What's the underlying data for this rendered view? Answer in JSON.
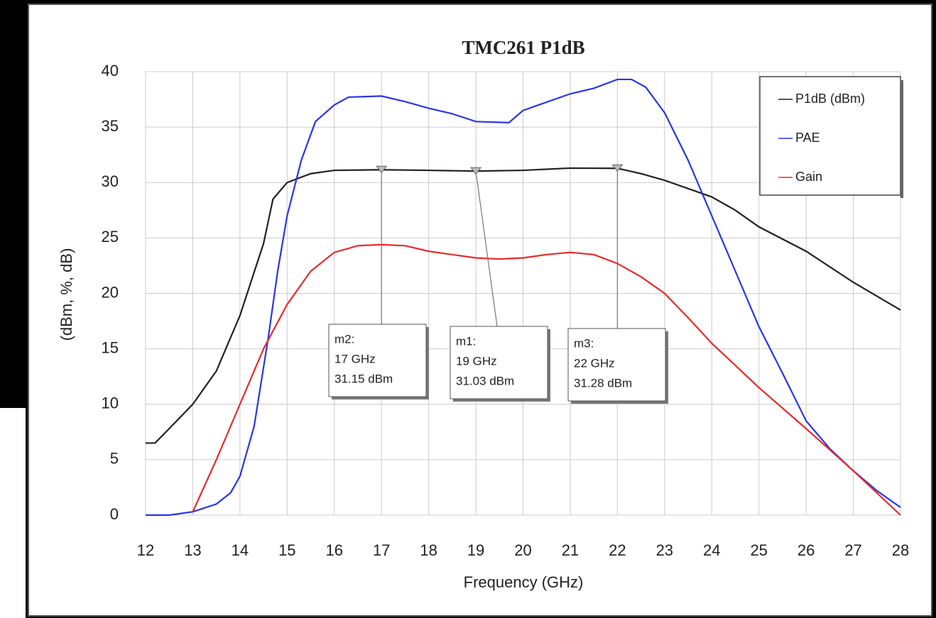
{
  "chart_data": {
    "type": "line",
    "title": "TMC261 P1dB",
    "x_label": "Frequency (GHz)",
    "y_label": "(dBm, %, dB)",
    "xlim": [
      12,
      28
    ],
    "xticks": [
      12,
      13,
      14,
      15,
      16,
      17,
      18,
      19,
      20,
      21,
      22,
      23,
      24,
      25,
      26,
      27,
      28
    ],
    "ylim": [
      0,
      40
    ],
    "yticks": [
      0,
      5,
      10,
      15,
      20,
      25,
      30,
      35,
      40
    ],
    "grid": true,
    "legend": "upper right",
    "series": [
      {
        "name": "P1dB (dBm)",
        "color": "#222222",
        "x": [
          12,
          12.2,
          12.5,
          13,
          13.5,
          14,
          14.5,
          14.7,
          15,
          15.5,
          16,
          17,
          18,
          19,
          20,
          21,
          22,
          22.5,
          23,
          24,
          24.5,
          25,
          26,
          27,
          28
        ],
        "values": [
          6.5,
          6.5,
          7.8,
          10,
          13,
          18,
          24.5,
          28.5,
          30,
          30.8,
          31.1,
          31.15,
          31.1,
          31.03,
          31.1,
          31.3,
          31.28,
          30.8,
          30.2,
          28.7,
          27.5,
          26,
          23.8,
          21,
          18.5
        ]
      },
      {
        "name": "PAE",
        "color": "#2a35e8",
        "x": [
          12,
          12.5,
          13,
          13.5,
          13.8,
          14,
          14.3,
          14.6,
          14.8,
          15,
          15.3,
          15.6,
          16,
          16.3,
          17,
          17.5,
          18,
          18.5,
          19,
          19.7,
          20,
          21,
          21.5,
          22,
          22.3,
          22.6,
          23,
          23.5,
          24,
          24.5,
          25,
          25.5,
          26,
          26.5,
          27,
          27.5,
          28
        ],
        "values": [
          0,
          0,
          0.3,
          1,
          2,
          3.5,
          8,
          16,
          22,
          27,
          32,
          35.5,
          37,
          37.7,
          37.8,
          37.3,
          36.7,
          36.2,
          35.5,
          35.4,
          36.5,
          38,
          38.5,
          39.3,
          39.3,
          38.6,
          36.3,
          32,
          27,
          22,
          17,
          12.8,
          8.5,
          6,
          4,
          2.2,
          0.7
        ]
      },
      {
        "name": "Gain",
        "color": "#e82a2a",
        "x": [
          13,
          13.5,
          14,
          14.5,
          15,
          15.5,
          16,
          16.5,
          17,
          17.5,
          18,
          19,
          19.5,
          20,
          20.5,
          21,
          21.5,
          22,
          22.5,
          23,
          23.5,
          24,
          25,
          26,
          27,
          28
        ],
        "values": [
          0.3,
          5,
          10,
          15,
          19,
          22,
          23.7,
          24.3,
          24.4,
          24.3,
          23.8,
          23.2,
          23.1,
          23.2,
          23.5,
          23.7,
          23.5,
          22.7,
          21.5,
          20,
          17.8,
          15.5,
          11.5,
          7.8,
          4,
          0
        ]
      }
    ],
    "markers": [
      {
        "name": "m2:",
        "freq": "17 GHz",
        "x": 17,
        "y": 31.15,
        "value_label": "31.15 dBm"
      },
      {
        "name": "m1:",
        "freq": "19 GHz",
        "x": 19,
        "y": 31.03,
        "value_label": "31.03 dBm"
      },
      {
        "name": "m3:",
        "freq": "22 GHz",
        "x": 22,
        "y": 31.28,
        "value_label": "31.28 dBm"
      }
    ]
  }
}
